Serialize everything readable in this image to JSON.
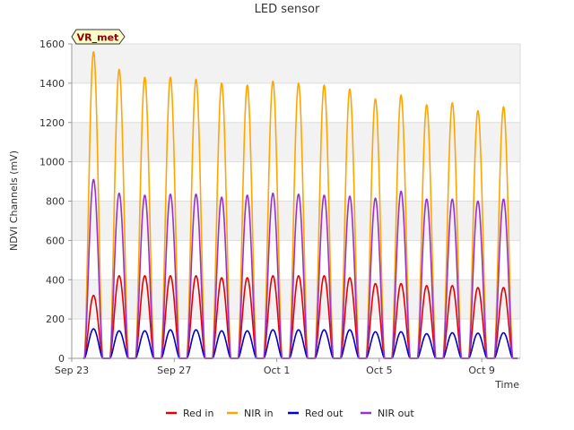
{
  "chart_data": {
    "type": "line",
    "title": "LED sensor",
    "xlabel": "Time",
    "ylabel": "NDVI Channels (mV)",
    "badge": "VR_met",
    "ylim": [
      0,
      1600
    ],
    "yticks": [
      0,
      200,
      400,
      600,
      800,
      1000,
      1200,
      1400,
      1600
    ],
    "xlim": [
      0,
      17.5
    ],
    "xticks": [
      {
        "label": "Sep 23",
        "value": 0
      },
      {
        "label": "Sep 27",
        "value": 4
      },
      {
        "label": "Oct 1",
        "value": 8
      },
      {
        "label": "Oct 5",
        "value": 12
      },
      {
        "label": "Oct 9",
        "value": 16
      }
    ],
    "day_peak_times": [
      0.85,
      1.85,
      2.85,
      3.85,
      4.85,
      5.85,
      6.85,
      7.85,
      8.85,
      9.85,
      10.85,
      11.85,
      12.85,
      13.85,
      14.85,
      15.85,
      16.85
    ],
    "series": [
      {
        "name": "Red in",
        "color": "#e60000",
        "peaks": [
          320,
          420,
          420,
          420,
          420,
          410,
          410,
          420,
          420,
          420,
          410,
          380,
          380,
          370,
          370,
          360,
          360
        ]
      },
      {
        "name": "NIR in",
        "color": "#ffa500",
        "peaks": [
          1560,
          1470,
          1430,
          1430,
          1420,
          1400,
          1390,
          1410,
          1400,
          1390,
          1370,
          1320,
          1340,
          1290,
          1300,
          1260,
          1280
        ]
      },
      {
        "name": "Red out",
        "color": "#0000cc",
        "peaks": [
          150,
          140,
          140,
          145,
          145,
          140,
          140,
          145,
          145,
          145,
          145,
          135,
          135,
          125,
          130,
          128,
          130
        ]
      },
      {
        "name": "NIR out",
        "color": "#9932cc",
        "peaks": [
          910,
          840,
          830,
          835,
          835,
          820,
          830,
          840,
          835,
          830,
          825,
          815,
          850,
          810,
          810,
          800,
          810
        ]
      }
    ],
    "legend_position": "bottom",
    "grid": true
  }
}
